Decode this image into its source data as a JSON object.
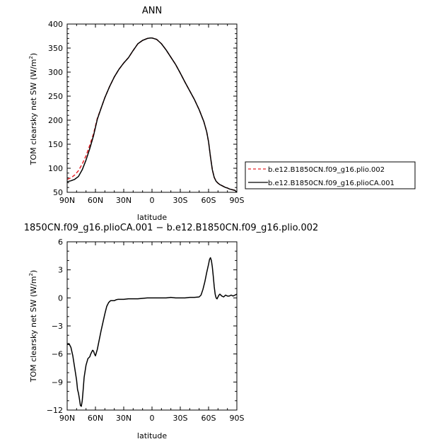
{
  "chart_data": [
    {
      "type": "line",
      "title": "ANN",
      "xlabel": "latitude",
      "ylabel": "TOM clearsky net SW (W/m",
      "ylabel_sup": "2",
      "ylabel_close": ")",
      "xlim": [
        90,
        -90
      ],
      "ylim": [
        50,
        400
      ],
      "x_ticks": [
        90,
        60,
        30,
        0,
        -30,
        -60,
        -90
      ],
      "x_tick_labels": [
        "90N",
        "60N",
        "30N",
        "0",
        "30S",
        "60S",
        "90S"
      ],
      "y_ticks": [
        50,
        100,
        150,
        200,
        250,
        300,
        350,
        400
      ],
      "y_tick_labels": [
        "50",
        "100",
        "150",
        "200",
        "250",
        "300",
        "350",
        "400"
      ],
      "legend_position": "right",
      "series": [
        {
          "name": "b.e12.B1850CN.f09_g16.plio.002",
          "color": "#e8262b",
          "style": "dashed",
          "x": [
            90,
            86,
            82,
            78,
            74,
            70,
            66,
            62,
            58,
            54,
            50,
            45,
            40,
            35,
            30,
            25,
            20,
            15,
            10,
            5,
            2,
            0,
            -5,
            -10,
            -15,
            -20,
            -25,
            -30,
            -35,
            -40,
            -45,
            -50,
            -55,
            -58,
            -60,
            -62,
            -64,
            -66,
            -68,
            -70,
            -72,
            -74,
            -76,
            -78,
            -80,
            -82,
            -84,
            -86,
            -88,
            -90
          ],
          "y": [
            77,
            80,
            86,
            95,
            109,
            126,
            148,
            172,
            204,
            225,
            247,
            270,
            290,
            306,
            319,
            330,
            345,
            359,
            366,
            370,
            371,
            371,
            368,
            359,
            346,
            331,
            316,
            298,
            279,
            261,
            243,
            222,
            197,
            176,
            155,
            124,
            97,
            81,
            73,
            69,
            66,
            64,
            62,
            60,
            59,
            57,
            56,
            55,
            54,
            50
          ]
        },
        {
          "name": "b.e12.B1850CN.f09_g16.plioCA.001",
          "color": "#000000",
          "style": "solid",
          "x": [
            90,
            86,
            82,
            78,
            74,
            70,
            66,
            62,
            58,
            54,
            50,
            45,
            40,
            35,
            30,
            25,
            20,
            15,
            10,
            5,
            2,
            0,
            -5,
            -10,
            -15,
            -20,
            -25,
            -30,
            -35,
            -40,
            -45,
            -50,
            -55,
            -58,
            -60,
            -62,
            -64,
            -66,
            -68,
            -70,
            -72,
            -74,
            -76,
            -78,
            -80,
            -82,
            -84,
            -86,
            -88,
            -90
          ],
          "y": [
            72,
            74,
            77,
            83,
            97,
            117,
            141,
            168,
            202,
            225,
            247,
            270,
            290,
            306,
            319,
            330,
            345,
            359,
            366,
            370,
            371,
            371,
            368,
            359,
            346,
            331,
            316,
            298,
            279,
            261,
            243,
            222,
            197,
            176,
            155,
            124,
            97,
            81,
            73,
            69,
            66,
            64,
            62,
            60,
            59,
            57,
            56,
            55,
            54,
            50
          ]
        }
      ]
    },
    {
      "type": "line",
      "title": "1850CN.f09_g16.plioCA.001 − b.e12.B1850CN.f09_g16.plio.002",
      "xlabel": "latitude",
      "ylabel": "TOM clearsky net SW (W/m",
      "ylabel_sup": "2",
      "ylabel_close": ")",
      "xlim": [
        90,
        -90
      ],
      "ylim": [
        -12,
        6
      ],
      "x_ticks": [
        90,
        60,
        30,
        0,
        -30,
        -60,
        -90
      ],
      "x_tick_labels": [
        "90N",
        "60N",
        "30N",
        "0",
        "30S",
        "60S",
        "90S"
      ],
      "y_ticks": [
        -12,
        -9,
        -6,
        -3,
        0,
        3,
        6
      ],
      "y_tick_labels": [
        "−12",
        "−9",
        "−6",
        "−3",
        "0",
        "3",
        "6"
      ],
      "series": [
        {
          "color": "#000000",
          "style": "solid",
          "x": [
            90,
            88,
            86,
            84,
            82,
            80,
            79,
            78,
            77,
            76,
            75,
            74,
            73,
            72,
            70,
            68,
            66,
            65,
            64,
            63,
            62,
            61,
            60,
            58,
            56,
            54,
            52,
            50,
            48,
            46,
            44,
            42,
            40,
            38,
            36,
            34,
            32,
            30,
            25,
            20,
            15,
            10,
            5,
            0,
            -5,
            -10,
            -15,
            -20,
            -25,
            -30,
            -35,
            -40,
            -45,
            -50,
            -52,
            -54,
            -56,
            -58,
            -60,
            -61,
            -62,
            -63,
            -64,
            -65,
            -66,
            -67,
            -68,
            -69,
            -70,
            -71,
            -72,
            -74,
            -76,
            -78,
            -80,
            -82,
            -84,
            -86,
            -88,
            -90
          ],
          "y": [
            -4.9,
            -4.9,
            -5.3,
            -6.2,
            -7.5,
            -8.8,
            -9.8,
            -10.2,
            -10.8,
            -11.5,
            -11.6,
            -11.0,
            -9.8,
            -8.5,
            -7.2,
            -6.5,
            -6.3,
            -6.0,
            -5.8,
            -5.6,
            -5.7,
            -6.0,
            -6.2,
            -5.5,
            -4.5,
            -3.5,
            -2.6,
            -1.7,
            -0.9,
            -0.5,
            -0.3,
            -0.3,
            -0.3,
            -0.2,
            -0.15,
            -0.15,
            -0.15,
            -0.15,
            -0.1,
            -0.1,
            -0.1,
            -0.05,
            0.0,
            0.0,
            0.0,
            0.0,
            0.0,
            0.05,
            0.0,
            0.0,
            0.0,
            0.05,
            0.05,
            0.1,
            0.3,
            0.9,
            1.7,
            2.7,
            3.6,
            4.1,
            4.3,
            4.0,
            3.3,
            2.3,
            1.2,
            0.4,
            0.0,
            -0.1,
            0.1,
            0.3,
            0.4,
            0.2,
            0.1,
            0.3,
            0.2,
            0.2,
            0.3,
            0.2,
            0.3,
            0.4
          ]
        }
      ]
    }
  ]
}
